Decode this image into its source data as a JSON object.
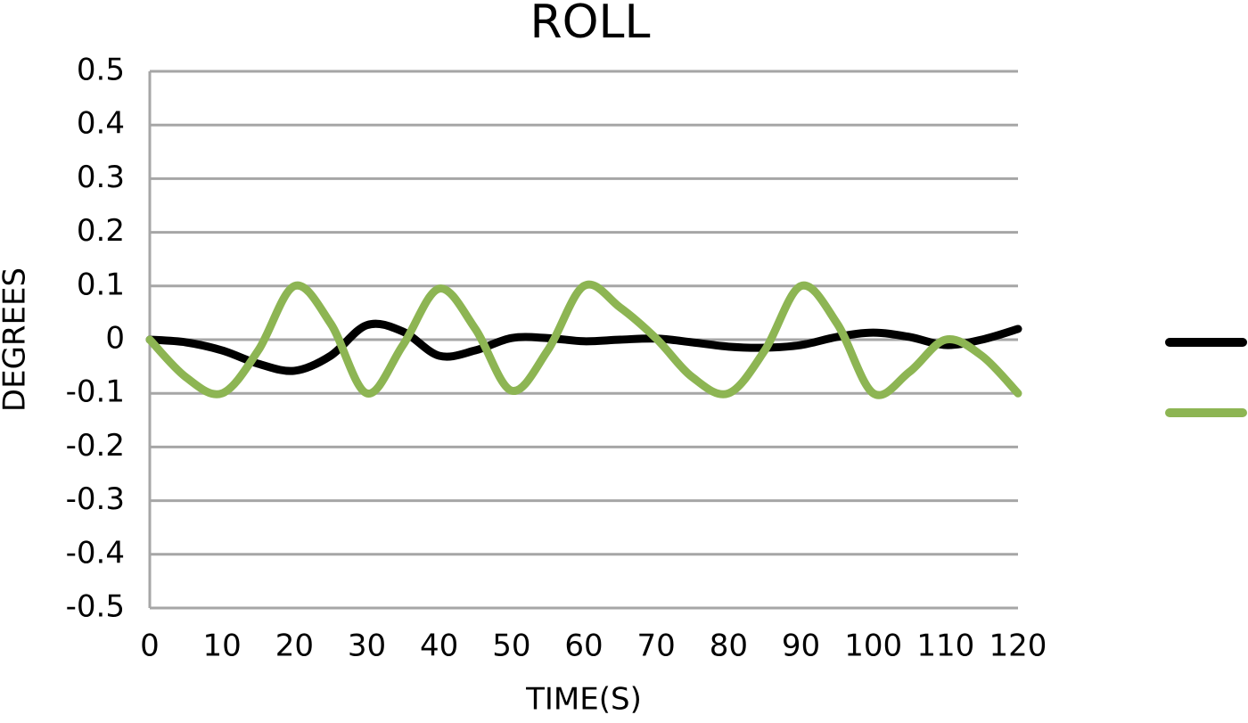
{
  "chart_data": {
    "type": "line",
    "title": "ROLL",
    "x_label": "TIME(S)",
    "y_label": "DEGREES",
    "x": [
      0,
      5,
      10,
      15,
      20,
      25,
      30,
      35,
      40,
      45,
      50,
      55,
      60,
      65,
      70,
      75,
      80,
      85,
      90,
      95,
      100,
      105,
      110,
      115,
      120
    ],
    "series": [
      {
        "color": "#000000",
        "values": [
          0,
          -0.005,
          -0.02,
          -0.045,
          -0.058,
          -0.03,
          0.027,
          0.015,
          -0.03,
          -0.02,
          0.003,
          0.003,
          -0.003,
          0,
          0.002,
          -0.005,
          -0.013,
          -0.015,
          -0.01,
          0.005,
          0.013,
          0.005,
          -0.01,
          0,
          0.02
        ]
      },
      {
        "color": "#8db553",
        "values": [
          0,
          -0.07,
          -0.1,
          -0.02,
          0.1,
          0.03,
          -0.1,
          -0.01,
          0.095,
          0.02,
          -0.095,
          -0.02,
          0.1,
          0.06,
          0.002,
          -0.07,
          -0.1,
          -0.02,
          0.1,
          0.03,
          -0.1,
          -0.06,
          0,
          -0.03,
          -0.1
        ]
      }
    ],
    "xlim": [
      0,
      120
    ],
    "xticks": [
      0,
      10,
      20,
      30,
      40,
      50,
      60,
      70,
      80,
      90,
      100,
      110,
      120
    ],
    "ylim": [
      -0.5,
      0.5
    ],
    "yticks": [
      0.5,
      0.4,
      0.3,
      0.2,
      0.1,
      0,
      -0.1,
      -0.2,
      -0.3,
      -0.4,
      -0.5
    ],
    "grid": true,
    "legend": "right"
  }
}
